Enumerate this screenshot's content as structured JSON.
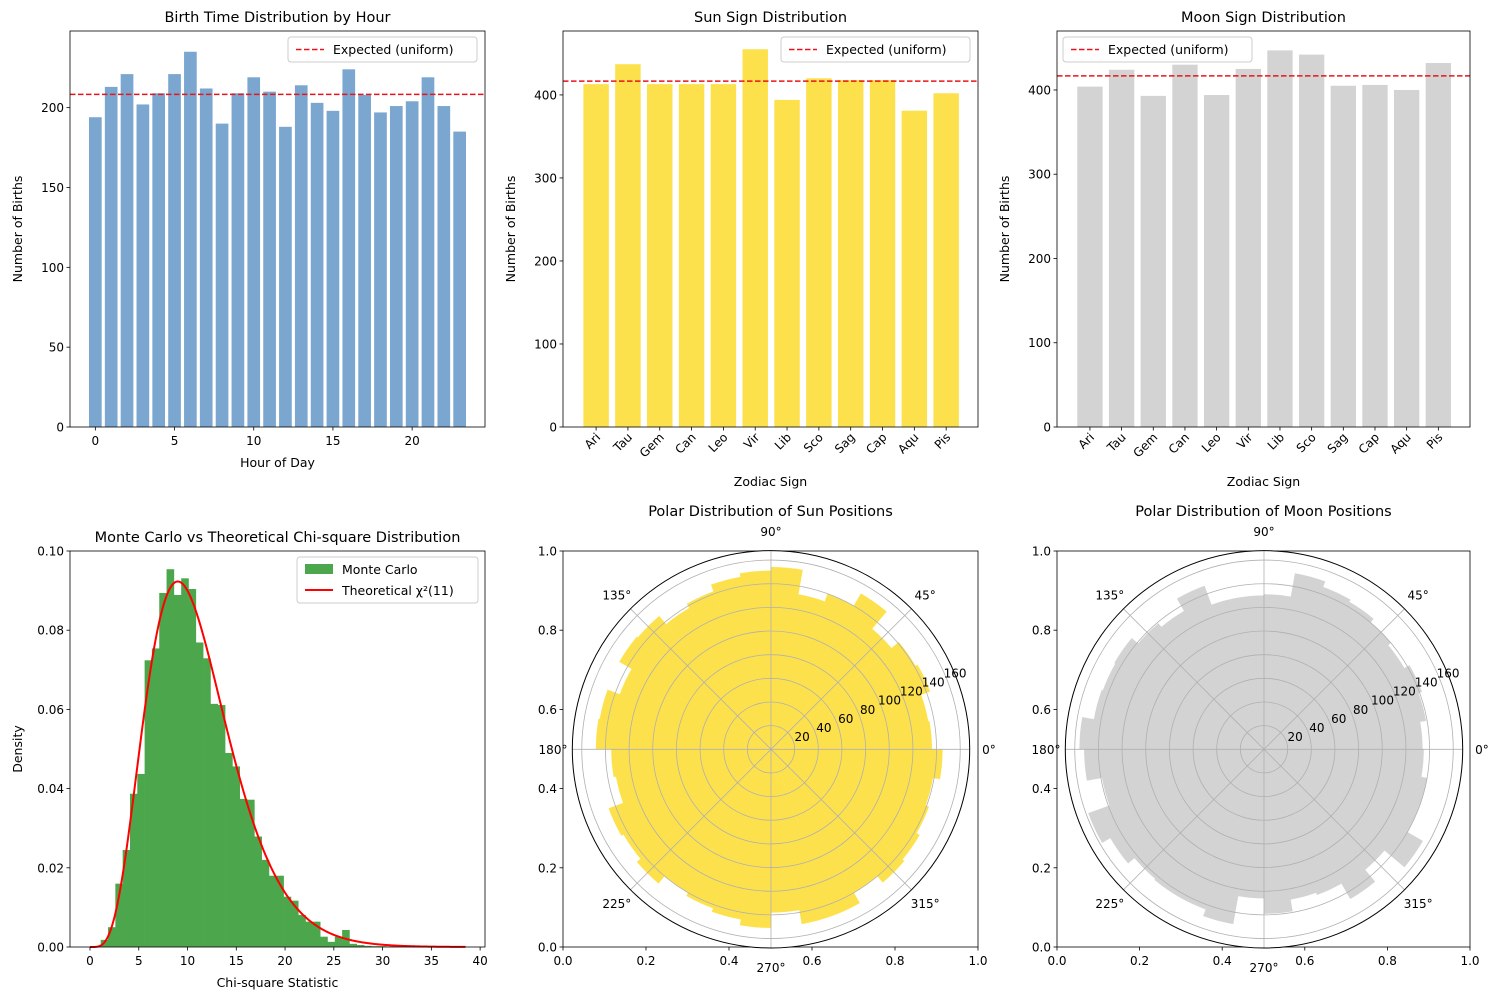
{
  "chart_data": [
    {
      "type": "bar",
      "title": "Birth Time Distribution by Hour",
      "xlabel": "Hour of Day",
      "ylabel": "Number of Births",
      "x": [
        0,
        1,
        2,
        3,
        4,
        5,
        6,
        7,
        8,
        9,
        10,
        11,
        12,
        13,
        14,
        15,
        16,
        17,
        18,
        19,
        20,
        21,
        22,
        23
      ],
      "values": [
        194,
        213,
        221,
        202,
        209,
        221,
        235,
        212,
        190,
        209,
        219,
        210,
        188,
        214,
        203,
        198,
        224,
        208,
        197,
        201,
        204,
        219,
        201,
        185
      ],
      "xticks": [
        0,
        5,
        10,
        15,
        20
      ],
      "xtick_labels": [
        "0",
        "5",
        "10",
        "15",
        "20"
      ],
      "yticks": [
        0,
        50,
        100,
        150,
        200
      ],
      "ytick_labels": [
        "0",
        "50",
        "100",
        "150",
        "200"
      ],
      "xlim": [
        -1.6,
        24.6
      ],
      "ylim": [
        0,
        248
      ],
      "color": "#7aa6cf",
      "reference_line": {
        "name": "Expected (uniform)",
        "value": 208.33,
        "color": "#e8141b"
      },
      "legend": "top-right",
      "grid": false
    },
    {
      "type": "bar",
      "title": "Sun Sign Distribution",
      "xlabel": "Zodiac Sign",
      "ylabel": "Number of Births",
      "categories": [
        "Ari",
        "Tau",
        "Gem",
        "Can",
        "Leo",
        "Vir",
        "Lib",
        "Sco",
        "Sag",
        "Cap",
        "Aqu",
        "Pis"
      ],
      "values": [
        413,
        437,
        413,
        413,
        413,
        455,
        394,
        420,
        418,
        418,
        381,
        402
      ],
      "yticks": [
        0,
        100,
        200,
        300,
        400
      ],
      "ytick_labels": [
        "0",
        "100",
        "200",
        "300",
        "400"
      ],
      "xlim": [
        -1.04,
        12.0
      ],
      "ylim": [
        0,
        477
      ],
      "color": "#fde14c",
      "reference_line": {
        "name": "Expected (uniform)",
        "value": 416.67,
        "color": "#e8141b"
      },
      "legend": "top-right",
      "grid": false
    },
    {
      "type": "bar",
      "title": "Moon Sign Distribution",
      "xlabel": "Zodiac Sign",
      "ylabel": "Number of Births",
      "categories": [
        "Ari",
        "Tau",
        "Gem",
        "Can",
        "Leo",
        "Vir",
        "Lib",
        "Sco",
        "Sag",
        "Cap",
        "Aqu",
        "Pis"
      ],
      "values": [
        404,
        424,
        393,
        430,
        394,
        425,
        447,
        442,
        405,
        406,
        400,
        432
      ],
      "yticks": [
        0,
        100,
        200,
        300,
        400
      ],
      "ytick_labels": [
        "0",
        "100",
        "200",
        "300",
        "400"
      ],
      "xlim": [
        -1.04,
        12.0
      ],
      "ylim": [
        0,
        470
      ],
      "color": "#d3d3d3",
      "reference_line": {
        "name": "Expected (uniform)",
        "value": 416.67,
        "color": "#e8141b"
      },
      "legend": "top-left",
      "grid": false
    },
    {
      "type": "histogram",
      "title": "Monte Carlo vs Theoretical Chi-square Distribution",
      "xlabel": "Chi-square Statistic",
      "ylabel": "Density",
      "bin_start": 1.1,
      "bin_width": 0.75,
      "values": [
        0.0018,
        0.005,
        0.016,
        0.0245,
        0.0387,
        0.0437,
        0.0724,
        0.0754,
        0.0894,
        0.0954,
        0.0889,
        0.0931,
        0.0904,
        0.0769,
        0.0729,
        0.0614,
        0.0611,
        0.049,
        0.0456,
        0.0374,
        0.0372,
        0.0279,
        0.022,
        0.018,
        0.018,
        0.0127,
        0.0117,
        0.0081,
        0.0064,
        0.0064,
        0.0026,
        0.0013,
        0.0026,
        0.0043,
        0.0008,
        0.0005,
        0.0003,
        0.0002,
        0.0002,
        0.0001
      ],
      "series": [
        {
          "name": "Monte Carlo",
          "color": "#4ca64c"
        },
        {
          "name": "Theoretical χ²(11)",
          "color": "#ff0000",
          "df": 11,
          "x_range": [
            0,
            38.5
          ]
        }
      ],
      "xticks": [
        0,
        5,
        10,
        15,
        20,
        25,
        30,
        35,
        40
      ],
      "xtick_labels": [
        "0",
        "5",
        "10",
        "15",
        "20",
        "25",
        "30",
        "35",
        "40"
      ],
      "yticks": [
        0,
        0.02,
        0.04,
        0.06,
        0.08,
        0.1
      ],
      "ytick_labels": [
        "0.00",
        "0.02",
        "0.04",
        "0.06",
        "0.08",
        "0.10"
      ],
      "xlim": [
        -2.05,
        40.5
      ],
      "ylim": [
        0,
        0.1
      ],
      "legend": "top-right",
      "grid": false
    },
    {
      "type": "polar-bar",
      "title": "Polar Distribution of Sun Positions",
      "bin_width_deg": 10,
      "values": [
        136,
        135,
        143,
        141,
        133,
        152,
        140,
        133,
        154,
        151,
        148,
        142,
        138,
        147,
        148,
        136,
        147,
        148,
        135,
        133,
        146,
        144,
        148,
        140,
        143,
        146,
        151,
        138,
        150,
        150,
        140,
        147,
        145,
        142,
        139,
        145
      ],
      "color": "#fde14c",
      "rmax": 168,
      "rticks": [
        20,
        40,
        60,
        80,
        100,
        120,
        140,
        160
      ],
      "rtick_labels": [
        "20",
        "40",
        "60",
        "80",
        "100",
        "120",
        "140",
        "160"
      ],
      "angle_ticks": [
        0,
        45,
        90,
        135,
        180,
        225,
        270,
        315
      ],
      "angle_labels": [
        "0°",
        "45°",
        "90°",
        "135°",
        "180°",
        "225°",
        "270°",
        "315°"
      ],
      "frame_ticks": [
        "0.0",
        "0.2",
        "0.4",
        "0.6",
        "0.8",
        "1.0"
      ],
      "grid": true
    },
    {
      "type": "polar-bar",
      "title": "Polar Distribution of Moon Positions",
      "bin_width_deg": 10,
      "values": [
        134,
        139,
        142,
        137,
        140,
        144,
        146,
        151,
        131,
        130,
        130,
        147,
        135,
        139,
        146,
        145,
        146,
        156,
        152,
        139,
        158,
        150,
        143,
        144,
        144,
        150,
        126,
        139,
        129,
        131,
        146,
        133,
        155,
        140,
        140,
        135
      ],
      "color": "#d3d3d3",
      "rmax": 168,
      "rticks": [
        20,
        40,
        60,
        80,
        100,
        120,
        140,
        160
      ],
      "rtick_labels": [
        "20",
        "40",
        "60",
        "80",
        "100",
        "120",
        "140",
        "160"
      ],
      "angle_ticks": [
        0,
        45,
        90,
        135,
        180,
        225,
        270,
        315
      ],
      "angle_labels": [
        "0°",
        "45°",
        "90°",
        "135°",
        "180°",
        "225°",
        "270°",
        "315°"
      ],
      "frame_ticks": [
        "0.0",
        "0.2",
        "0.4",
        "0.6",
        "0.8",
        "1.0"
      ],
      "grid": true
    }
  ]
}
